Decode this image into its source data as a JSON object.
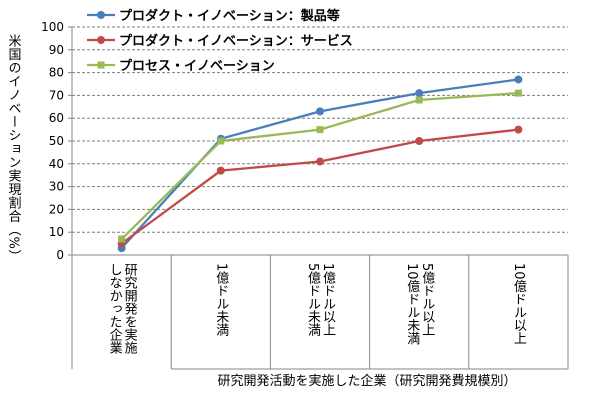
{
  "chart_data": {
    "type": "line",
    "ylabel": "米国のイノベーション実現割合（%）",
    "xgroup_label": "研究開発活動を実施した企業（研究開発費規模別）",
    "ylim": [
      0,
      100
    ],
    "yticks": [
      0,
      10,
      20,
      30,
      40,
      50,
      60,
      70,
      80,
      90,
      100
    ],
    "categories": [
      "研究開発を実施\nしなかった企業",
      "1億ドル未満",
      "1億ドル以上\n5億ドル未満",
      "5億ドル以上\n10億ドル未満",
      "10億ドル以上"
    ],
    "grid": true,
    "legend_position": "top-left",
    "series": [
      {
        "name": "プロダクト・イノベーション：製品等",
        "color": "#4a7ebb",
        "marker": "circle",
        "values": [
          3,
          51,
          63,
          71,
          77
        ]
      },
      {
        "name": "プロダクト・イノベーション：サービス",
        "color": "#be4b48",
        "marker": "circle",
        "values": [
          5,
          37,
          41,
          50,
          55
        ]
      },
      {
        "name": "プロセス・イノベーション",
        "color": "#98b954",
        "marker": "square",
        "values": [
          7,
          50,
          55,
          68,
          71
        ]
      }
    ]
  }
}
